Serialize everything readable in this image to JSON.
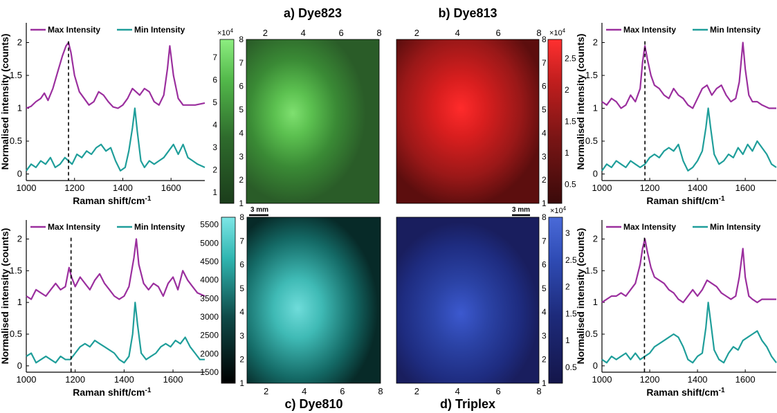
{
  "colors": {
    "max": "#9b2f9e",
    "min": "#1f9e9a",
    "cursor": "#000000"
  },
  "legend": {
    "max_label": "Max Intensity",
    "min_label": "Min Intensity"
  },
  "map_titles": {
    "a": "a) Dye823",
    "b": "b) Dye813",
    "c": "c) Dye810",
    "d": "d) Triplex"
  },
  "scale_bar_label": "3 mm",
  "chart_data": [
    {
      "type": "line",
      "panel": "spectrum-top-left",
      "xlabel": "Raman shift/cm-1",
      "ylabel": "Normalised intensity (counts)",
      "xlim": [
        1000,
        1740
      ],
      "ylim": [
        -0.1,
        2.3
      ],
      "xticks": [
        1000,
        1200,
        1400,
        1600
      ],
      "yticks": [
        0,
        0.5,
        1,
        1.5,
        2
      ],
      "marker_x": 1175,
      "series": [
        {
          "name": "Max Intensity",
          "x": [
            1000,
            1020,
            1040,
            1060,
            1075,
            1090,
            1110,
            1130,
            1150,
            1165,
            1175,
            1185,
            1200,
            1220,
            1240,
            1260,
            1280,
            1300,
            1320,
            1340,
            1360,
            1380,
            1400,
            1420,
            1440,
            1455,
            1470,
            1490,
            1510,
            1530,
            1550,
            1570,
            1585,
            1595,
            1610,
            1630,
            1650,
            1670,
            1700,
            1740
          ],
          "y": [
            1.0,
            1.03,
            1.1,
            1.15,
            1.23,
            1.12,
            1.3,
            1.55,
            1.8,
            1.95,
            2.0,
            1.85,
            1.5,
            1.25,
            1.15,
            1.05,
            1.1,
            1.25,
            1.2,
            1.1,
            1.02,
            1.0,
            1.05,
            1.15,
            1.3,
            1.25,
            1.2,
            1.3,
            1.25,
            1.1,
            1.05,
            1.2,
            1.6,
            1.95,
            1.5,
            1.15,
            1.05,
            1.05,
            1.05,
            1.08
          ]
        },
        {
          "name": "Min Intensity",
          "x": [
            1000,
            1020,
            1040,
            1060,
            1080,
            1100,
            1120,
            1140,
            1160,
            1175,
            1190,
            1210,
            1230,
            1250,
            1270,
            1290,
            1310,
            1330,
            1350,
            1370,
            1390,
            1410,
            1425,
            1440,
            1450,
            1460,
            1475,
            1490,
            1510,
            1530,
            1550,
            1570,
            1590,
            1610,
            1630,
            1650,
            1670,
            1690,
            1710,
            1740
          ],
          "y": [
            0.05,
            0.15,
            0.1,
            0.2,
            0.15,
            0.25,
            0.1,
            0.15,
            0.25,
            0.2,
            0.15,
            0.3,
            0.25,
            0.35,
            0.3,
            0.4,
            0.45,
            0.35,
            0.4,
            0.2,
            0.05,
            0.1,
            0.35,
            0.7,
            1.0,
            0.65,
            0.2,
            0.1,
            0.2,
            0.15,
            0.2,
            0.25,
            0.35,
            0.45,
            0.3,
            0.45,
            0.25,
            0.2,
            0.15,
            0.1
          ]
        }
      ]
    },
    {
      "type": "line",
      "panel": "spectrum-top-right",
      "xlabel": "Raman shift/cm-1",
      "ylabel": "Normalised intensity (counts)",
      "xlim": [
        1000,
        1730
      ],
      "ylim": [
        -0.1,
        2.3
      ],
      "xticks": [
        1000,
        1200,
        1400,
        1600
      ],
      "yticks": [
        0,
        0.5,
        1,
        1.5,
        2
      ],
      "marker_x": 1180,
      "series": [
        {
          "name": "Max Intensity",
          "x": [
            1000,
            1020,
            1040,
            1060,
            1080,
            1100,
            1120,
            1140,
            1160,
            1170,
            1180,
            1190,
            1205,
            1220,
            1240,
            1260,
            1280,
            1300,
            1320,
            1340,
            1360,
            1380,
            1400,
            1420,
            1440,
            1460,
            1480,
            1500,
            1520,
            1540,
            1560,
            1575,
            1590,
            1600,
            1615,
            1630,
            1650,
            1670,
            1700,
            1730
          ],
          "y": [
            1.1,
            1.05,
            1.15,
            1.1,
            1.0,
            1.05,
            1.2,
            1.1,
            1.3,
            1.7,
            1.95,
            1.75,
            1.5,
            1.35,
            1.3,
            1.2,
            1.15,
            1.3,
            1.2,
            1.15,
            1.05,
            1.0,
            1.15,
            1.3,
            1.35,
            1.2,
            1.3,
            1.35,
            1.2,
            1.1,
            1.15,
            1.4,
            2.0,
            1.6,
            1.2,
            1.1,
            1.1,
            1.05,
            1.0,
            1.0
          ]
        },
        {
          "name": "Min Intensity",
          "x": [
            1000,
            1020,
            1040,
            1060,
            1080,
            1100,
            1120,
            1140,
            1160,
            1180,
            1200,
            1220,
            1240,
            1260,
            1280,
            1300,
            1320,
            1340,
            1360,
            1380,
            1400,
            1420,
            1435,
            1445,
            1455,
            1470,
            1490,
            1510,
            1530,
            1550,
            1570,
            1590,
            1610,
            1630,
            1650,
            1670,
            1690,
            1710,
            1730
          ],
          "y": [
            0.05,
            0.15,
            0.1,
            0.2,
            0.15,
            0.1,
            0.2,
            0.15,
            0.1,
            0.15,
            0.25,
            0.3,
            0.25,
            0.35,
            0.4,
            0.35,
            0.45,
            0.2,
            0.05,
            0.1,
            0.2,
            0.35,
            0.7,
            1.0,
            0.7,
            0.3,
            0.15,
            0.2,
            0.3,
            0.25,
            0.4,
            0.3,
            0.45,
            0.35,
            0.5,
            0.4,
            0.3,
            0.15,
            0.1
          ]
        }
      ]
    },
    {
      "type": "line",
      "panel": "spectrum-bottom-left",
      "xlabel": "Raman shift/cm-1",
      "ylabel": "Normalised intensity (counts)",
      "xlim": [
        1000,
        1730
      ],
      "ylim": [
        -0.1,
        2.3
      ],
      "xticks": [
        1000,
        1200,
        1400,
        1600
      ],
      "yticks": [
        0,
        0.5,
        1,
        1.5,
        2
      ],
      "marker_x": 1183,
      "series": [
        {
          "name": "Max Intensity",
          "x": [
            1000,
            1020,
            1040,
            1060,
            1080,
            1100,
            1120,
            1140,
            1160,
            1175,
            1185,
            1200,
            1220,
            1240,
            1260,
            1280,
            1300,
            1320,
            1340,
            1360,
            1380,
            1400,
            1420,
            1440,
            1450,
            1460,
            1480,
            1500,
            1520,
            1540,
            1560,
            1580,
            1600,
            1620,
            1640,
            1660,
            1680,
            1700,
            1730
          ],
          "y": [
            1.1,
            1.05,
            1.2,
            1.15,
            1.1,
            1.2,
            1.3,
            1.2,
            1.25,
            1.55,
            1.4,
            1.25,
            1.4,
            1.3,
            1.2,
            1.35,
            1.45,
            1.3,
            1.2,
            1.1,
            1.05,
            1.1,
            1.25,
            1.7,
            2.0,
            1.6,
            1.3,
            1.2,
            1.3,
            1.25,
            1.1,
            1.3,
            1.4,
            1.2,
            1.5,
            1.35,
            1.25,
            1.15,
            1.1
          ]
        },
        {
          "name": "Min Intensity",
          "x": [
            1000,
            1020,
            1040,
            1060,
            1080,
            1100,
            1120,
            1140,
            1160,
            1180,
            1200,
            1220,
            1240,
            1260,
            1280,
            1300,
            1320,
            1340,
            1360,
            1380,
            1400,
            1420,
            1435,
            1445,
            1455,
            1470,
            1490,
            1510,
            1530,
            1550,
            1570,
            1590,
            1610,
            1630,
            1650,
            1670,
            1690,
            1710,
            1730
          ],
          "y": [
            0.15,
            0.2,
            0.05,
            0.1,
            0.15,
            0.1,
            0.05,
            0.15,
            0.1,
            0.1,
            0.2,
            0.3,
            0.35,
            0.3,
            0.4,
            0.35,
            0.3,
            0.25,
            0.2,
            0.1,
            0.05,
            0.15,
            0.5,
            1.0,
            0.65,
            0.2,
            0.1,
            0.15,
            0.2,
            0.3,
            0.35,
            0.3,
            0.4,
            0.35,
            0.45,
            0.3,
            0.2,
            0.1,
            0.1
          ]
        }
      ]
    },
    {
      "type": "line",
      "panel": "spectrum-bottom-right",
      "xlabel": "Raman shift/cm-1",
      "ylabel": "Normalised intensity (counts)",
      "xlim": [
        1000,
        1730
      ],
      "ylim": [
        -0.1,
        2.3
      ],
      "xticks": [
        1000,
        1200,
        1400,
        1600
      ],
      "yticks": [
        0,
        0.5,
        1,
        1.5,
        2
      ],
      "marker_x": 1178,
      "series": [
        {
          "name": "Max Intensity",
          "x": [
            1000,
            1020,
            1040,
            1060,
            1080,
            1100,
            1120,
            1140,
            1160,
            1170,
            1180,
            1190,
            1205,
            1220,
            1240,
            1260,
            1280,
            1300,
            1320,
            1340,
            1360,
            1380,
            1400,
            1420,
            1440,
            1460,
            1480,
            1500,
            1520,
            1540,
            1560,
            1575,
            1590,
            1600,
            1615,
            1630,
            1650,
            1670,
            1700,
            1730
          ],
          "y": [
            1.0,
            1.05,
            1.1,
            1.1,
            1.15,
            1.1,
            1.2,
            1.3,
            1.6,
            1.85,
            2.0,
            1.8,
            1.55,
            1.4,
            1.35,
            1.3,
            1.2,
            1.15,
            1.05,
            1.0,
            1.1,
            1.2,
            1.1,
            1.2,
            1.35,
            1.3,
            1.25,
            1.15,
            1.1,
            1.05,
            1.1,
            1.4,
            1.85,
            1.4,
            1.1,
            1.05,
            1.0,
            1.05,
            1.05,
            1.05
          ]
        },
        {
          "name": "Min Intensity",
          "x": [
            1000,
            1020,
            1040,
            1060,
            1080,
            1100,
            1120,
            1140,
            1160,
            1180,
            1200,
            1220,
            1240,
            1260,
            1280,
            1300,
            1320,
            1340,
            1360,
            1380,
            1400,
            1420,
            1435,
            1445,
            1455,
            1470,
            1490,
            1510,
            1530,
            1550,
            1570,
            1590,
            1610,
            1630,
            1650,
            1670,
            1690,
            1710,
            1730
          ],
          "y": [
            0.1,
            0.05,
            0.15,
            0.1,
            0.15,
            0.2,
            0.1,
            0.2,
            0.1,
            0.15,
            0.2,
            0.3,
            0.35,
            0.4,
            0.45,
            0.5,
            0.45,
            0.3,
            0.1,
            0.05,
            0.15,
            0.2,
            0.6,
            1.0,
            0.7,
            0.25,
            0.1,
            0.05,
            0.2,
            0.3,
            0.25,
            0.4,
            0.45,
            0.5,
            0.55,
            0.4,
            0.3,
            0.15,
            0.05
          ]
        }
      ]
    },
    {
      "type": "heatmap",
      "panel": "map-a",
      "title": "a) Dye823",
      "xticks": [
        2,
        4,
        6,
        8
      ],
      "yticks": [
        1,
        2,
        3,
        4,
        5,
        6,
        7,
        8
      ],
      "xlim": [
        1,
        8
      ],
      "ylim": [
        1,
        8
      ],
      "x_axis_position": "top",
      "colormap": [
        "#1b3d1b",
        "#2e6b2c",
        "#52b84a",
        "#8dee80"
      ],
      "colorbar": {
        "ticks": [
          1,
          2,
          3,
          4,
          5,
          6,
          7
        ],
        "range": [
          0.5,
          7.8
        ],
        "multiplier": "×10^4",
        "position": "left"
      },
      "hotspot": {
        "x": 3.4,
        "y": 5.0,
        "level": 0.82
      },
      "background_level": 0.2
    },
    {
      "type": "heatmap",
      "panel": "map-b",
      "title": "b) Dye813",
      "xticks": [
        2,
        4,
        6,
        8
      ],
      "yticks": [
        1,
        2,
        3,
        4,
        5,
        6,
        7,
        8
      ],
      "xlim": [
        1,
        8
      ],
      "ylim": [
        1,
        8
      ],
      "x_axis_position": "top",
      "colormap": [
        "#3a0a0a",
        "#7a1515",
        "#c21e1e",
        "#ff3030"
      ],
      "colorbar": {
        "ticks": [
          0.5,
          1,
          1.5,
          2,
          2.5
        ],
        "range": [
          0.2,
          2.8
        ],
        "multiplier": "×10^4",
        "position": "right"
      },
      "hotspot": {
        "x": 4.3,
        "y": 5.0,
        "level": 0.9
      },
      "background_level": 0.35
    },
    {
      "type": "heatmap",
      "panel": "map-c",
      "title": "c) Dye810",
      "xticks": [
        2,
        4,
        6,
        8
      ],
      "yticks": [
        1,
        2,
        3,
        4,
        5,
        6,
        7,
        8
      ],
      "xlim": [
        1,
        8
      ],
      "ylim": [
        1,
        8
      ],
      "x_axis_position": "bottom",
      "colormap": [
        "#000000",
        "#0f4a48",
        "#2fb5b0",
        "#7de6e6"
      ],
      "colorbar": {
        "ticks": [
          1500,
          2000,
          2500,
          3000,
          3500,
          4000,
          4500,
          5000,
          5500
        ],
        "range": [
          1200,
          5700
        ],
        "multiplier": "",
        "position": "left"
      },
      "hotspot": {
        "x": 3.5,
        "y": 3.5,
        "level": 0.78
      },
      "background_level": 0.25
    },
    {
      "type": "heatmap",
      "panel": "map-d",
      "title": "d) Triplex",
      "xticks": [
        2,
        4,
        6,
        8
      ],
      "yticks": [
        1,
        2,
        3,
        4,
        5,
        6,
        7,
        8
      ],
      "xlim": [
        1,
        8
      ],
      "ylim": [
        1,
        8
      ],
      "x_axis_position": "bottom",
      "colormap": [
        "#14164a",
        "#1d2a7a",
        "#2f4cb5",
        "#4a6ad8"
      ],
      "colorbar": {
        "ticks": [
          0.5,
          1,
          1.5,
          2,
          2.5,
          3
        ],
        "range": [
          0.2,
          3.3
        ],
        "multiplier": "×10^4",
        "position": "right"
      },
      "hotspot": {
        "x": 4.3,
        "y": 3.5,
        "level": 0.7
      },
      "background_level": 0.25
    }
  ]
}
